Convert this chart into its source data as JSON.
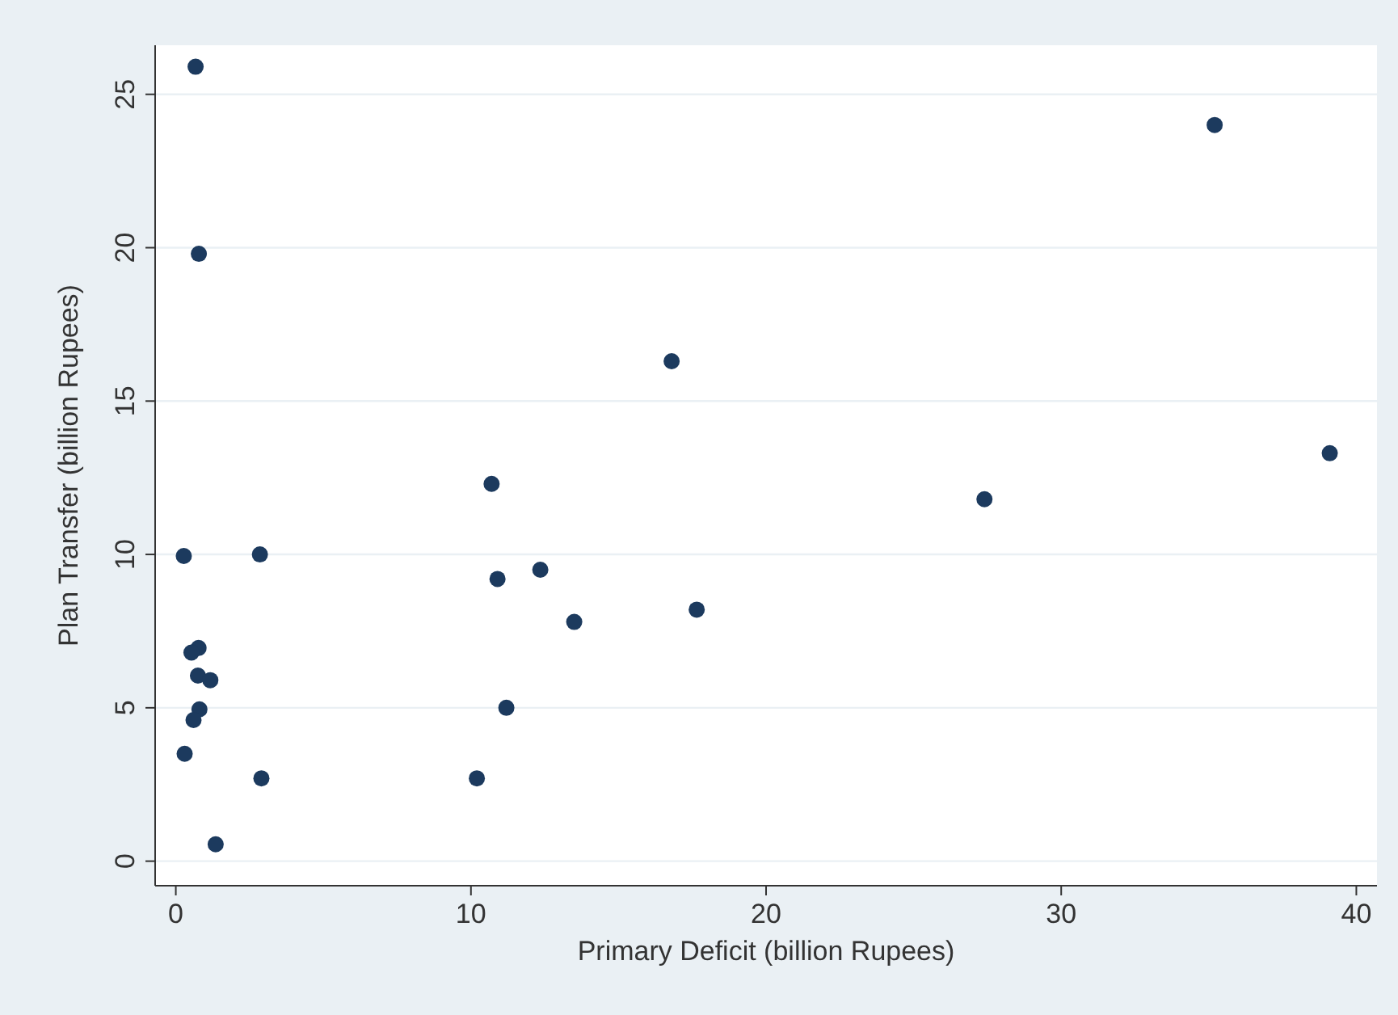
{
  "chart_data": {
    "type": "scatter",
    "xlabel": "Primary Deficit (billion Rupees)",
    "ylabel": "Plan Transfer (billion Rupees)",
    "x": [
      0.67,
      0.78,
      35.2,
      16.8,
      39.1,
      27.4,
      10.7,
      10.9,
      12.35,
      13.5,
      17.65,
      11.2,
      10.2,
      0.27,
      2.85,
      0.77,
      0.53,
      0.75,
      1.17,
      0.8,
      0.6,
      0.3,
      2.9,
      1.35
    ],
    "series": [
      {
        "color": "#1c3a5e",
        "values": [
          25.9,
          19.8,
          24.0,
          16.3,
          13.3,
          11.8,
          12.3,
          9.2,
          9.5,
          7.8,
          8.2,
          5.0,
          2.7,
          9.95,
          10.0,
          6.95,
          6.8,
          6.05,
          5.9,
          4.95,
          4.6,
          3.5,
          2.7,
          0.55
        ]
      }
    ],
    "xlim": [
      -0.7,
      40.7
    ],
    "ylim": [
      -0.8,
      26.6
    ],
    "xticks": [
      0,
      10,
      20,
      30,
      40
    ],
    "yticks": [
      0,
      5,
      10,
      15,
      20,
      25
    ],
    "grid": "y",
    "marker": "circle"
  }
}
